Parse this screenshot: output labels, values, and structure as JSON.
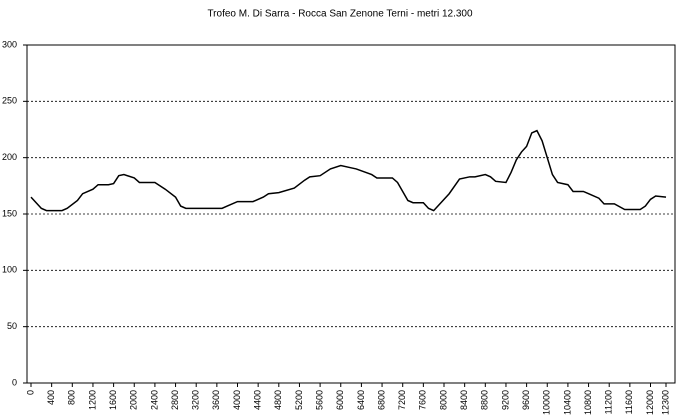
{
  "chart_data": {
    "type": "line",
    "title": "Trofeo M. Di Sarra - Rocca San Zenone Terni - metri 12.300",
    "x": [
      0,
      100,
      200,
      300,
      600,
      700,
      900,
      1000,
      1200,
      1300,
      1500,
      1600,
      1700,
      1800,
      2000,
      2100,
      2400,
      2600,
      2800,
      2900,
      3000,
      3700,
      3800,
      4000,
      4100,
      4300,
      4500,
      4600,
      4800,
      5100,
      5300,
      5400,
      5600,
      5800,
      6000,
      6200,
      6300,
      6600,
      6700,
      7000,
      7100,
      7200,
      7300,
      7400,
      7600,
      7700,
      7800,
      7900,
      8100,
      8300,
      8500,
      8600,
      8800,
      8900,
      9000,
      9200,
      9300,
      9400,
      9500,
      9600,
      9700,
      9800,
      9900,
      10000,
      10100,
      10200,
      10400,
      10500,
      10700,
      10800,
      11000,
      11100,
      11300,
      11500,
      11800,
      11900,
      12000,
      12100,
      12300
    ],
    "series": [
      {
        "color": "#000000",
        "values": [
          165,
          160,
          155,
          153,
          153,
          155,
          162,
          168,
          172,
          176,
          176,
          177,
          184,
          185,
          182,
          178,
          178,
          172,
          165,
          157,
          155,
          155,
          157,
          161,
          161,
          161,
          165,
          168,
          169,
          173,
          180,
          183,
          184,
          190,
          193,
          191,
          190,
          185,
          182,
          182,
          178,
          170,
          162,
          160,
          160,
          155,
          153,
          158,
          168,
          181,
          183,
          183,
          185,
          183,
          179,
          178,
          187,
          198,
          205,
          210,
          222,
          224,
          215,
          200,
          185,
          178,
          176,
          170,
          170,
          168,
          164,
          159,
          159,
          154,
          154,
          157,
          163,
          166,
          165
        ]
      }
    ],
    "xlim": [
      0,
      12300
    ],
    "xticks": [
      0,
      400,
      800,
      1200,
      1600,
      2000,
      2400,
      2800,
      3200,
      3600,
      4000,
      4400,
      4800,
      5200,
      5600,
      6000,
      6400,
      6800,
      7200,
      7600,
      8000,
      8400,
      8800,
      9200,
      9600,
      10000,
      10400,
      10800,
      11200,
      11600,
      12000,
      12300
    ],
    "ylim": [
      0,
      300
    ],
    "yticks": [
      0,
      50,
      100,
      150,
      200,
      250,
      300
    ],
    "grid": true
  }
}
